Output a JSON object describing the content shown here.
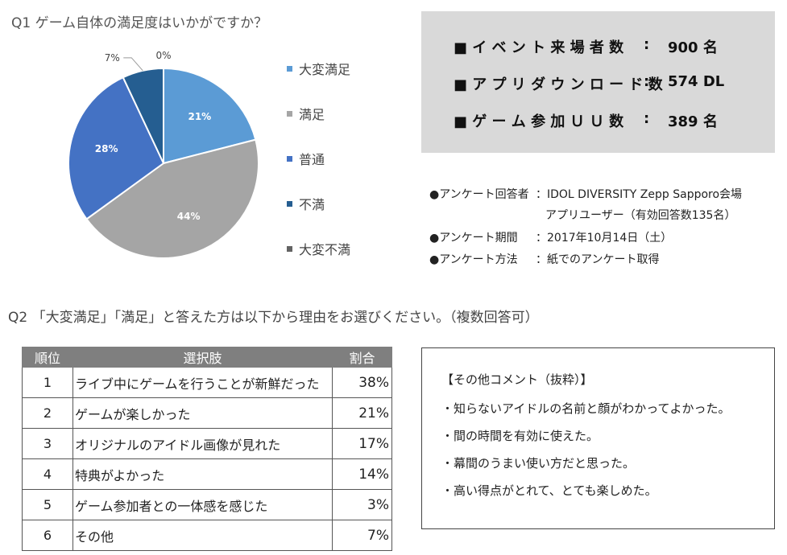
{
  "q1": {
    "title": "Q1 ゲーム自体の満足度はいかがですか？"
  },
  "chart_data": {
    "type": "pie",
    "title": "Q1 ゲーム自体の満足度はいかがですか？",
    "categories": [
      "大変満足",
      "満足",
      "普通",
      "不満",
      "大変不満"
    ],
    "values": [
      21,
      44,
      28,
      7,
      0
    ],
    "labels": [
      "21%",
      "44%",
      "28%",
      "7%",
      "0%"
    ],
    "colors": [
      "#5b9bd5",
      "#a5a5a5",
      "#4472c4",
      "#255e91",
      "#636363"
    ],
    "legend_position": "right"
  },
  "stats": [
    {
      "label": "■ イ ベ ン ト 来 場 者 数",
      "sep": ":",
      "value": "900 名"
    },
    {
      "label": "■ ア プ リ ダ ウ ン ロ ー ド 数",
      "sep": ":",
      "value": "574 DL"
    },
    {
      "label": "■ ゲ ー ム 参 加 Ｕ Ｕ 数",
      "sep": ":",
      "value": "389 名"
    }
  ],
  "survey_info": {
    "respondents_label": "●アンケート回答者",
    "respondents_value_1": "：IDOL DIVERSITY  Zepp Sapporo会場",
    "respondents_value_2": "アプリユーザー（有効回答数135名）",
    "period_label": "●アンケート期間",
    "period_value": "：2017年10月14日（土）",
    "method_label": "●アンケート方法",
    "method_value": "：紙でのアンケート取得"
  },
  "q2": {
    "title": "Q2 「大変満足」「満足」と答えた方は以下から理由をお選びください。（複数回答可）",
    "headers": [
      "順位",
      "選択肢",
      "割合"
    ],
    "rows": [
      {
        "rank": "1",
        "choice": "ライブ中にゲームを行うことが新鮮だった",
        "pct": "38%"
      },
      {
        "rank": "2",
        "choice": "ゲームが楽しかった",
        "pct": "21%"
      },
      {
        "rank": "3",
        "choice": "オリジナルのアイドル画像が見れた",
        "pct": "17%"
      },
      {
        "rank": "4",
        "choice": "特典がよかった",
        "pct": "14%"
      },
      {
        "rank": "5",
        "choice": "ゲーム参加者との一体感を感じた",
        "pct": "3%"
      },
      {
        "rank": "6",
        "choice": "その他",
        "pct": "7%"
      }
    ]
  },
  "comments": {
    "title": "【その他コメント（抜粋）】",
    "lines": [
      "・知らないアイドルの名前と顔がわかってよかった。",
      "・間の時間を有効に使えた。",
      "・幕間のうまい使い方だと思った。",
      "・高い得点がとれて、とても楽しめた。"
    ]
  }
}
